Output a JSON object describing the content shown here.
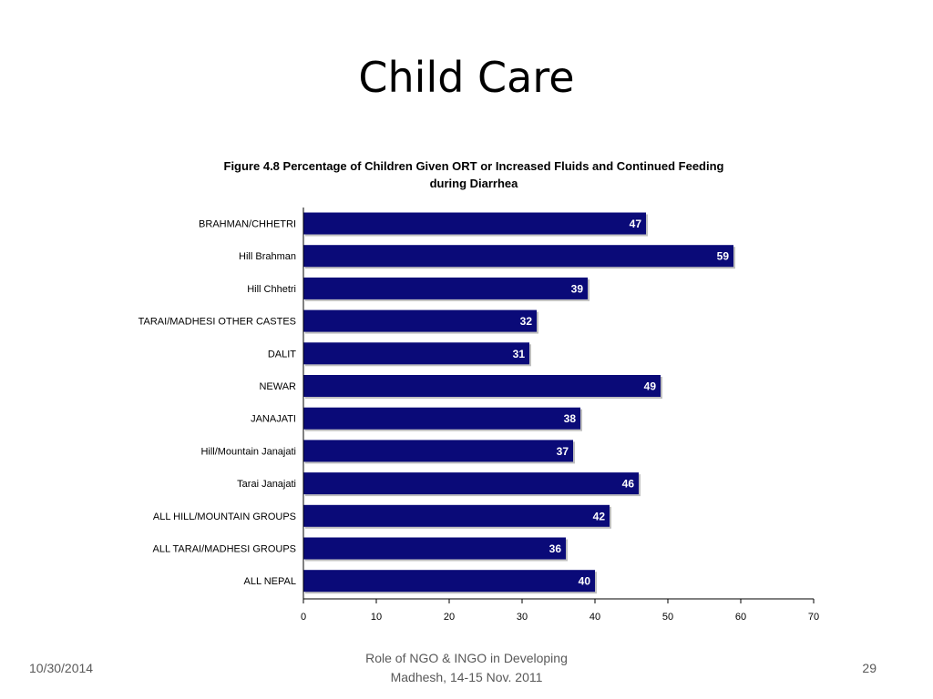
{
  "slide": {
    "title": "Child Care",
    "footer_date": "10/30/2014",
    "footer_center_line1": "Role of NGO & INGO in Developing",
    "footer_center_line2": "Madhesh, 14-15 Nov. 2011",
    "page_number": "29"
  },
  "chart_data": {
    "type": "bar",
    "orientation": "horizontal",
    "title_line1": "Figure 4.8  Percentage of Children Given ORT or Increased Fluids and Continued Feeding",
    "title_line2": "during Diarrhea",
    "categories": [
      "BRAHMAN/CHHETRI",
      "Hill Brahman",
      "Hill Chhetri",
      "TARAI/MADHESI OTHER CASTES",
      "DALIT",
      "NEWAR",
      "JANAJATI",
      "Hill/Mountain Janajati",
      "Tarai Janajati",
      "ALL HILL/MOUNTAIN GROUPS",
      "ALL TARAI/MADHESI GROUPS",
      "ALL NEPAL"
    ],
    "values": [
      47,
      59,
      39,
      32,
      31,
      49,
      38,
      37,
      46,
      42,
      36,
      40
    ],
    "xlim": [
      0,
      70
    ],
    "xticks": [
      0,
      10,
      20,
      30,
      40,
      50,
      60,
      70
    ],
    "bar_color": "#0a0a78",
    "data_label_color": "#ffffff",
    "grid": false,
    "legend": "none"
  }
}
